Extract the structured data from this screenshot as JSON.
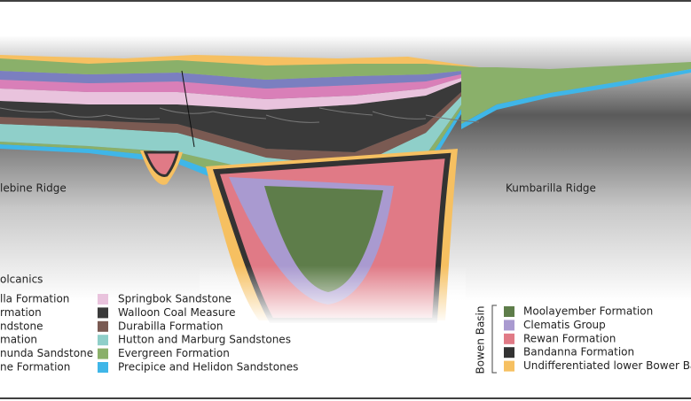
{
  "labels": {
    "left_ridge": "lebine Ridge",
    "right_ridge": "Kumbarilla Ridge",
    "bowen_group": "Bowen Basin"
  },
  "legend_left": [
    "olcanics",
    "lla Formation",
    "rmation",
    "ndstone",
    "mation",
    "nunda Sandstone",
    "ne Formation"
  ],
  "legend_middle": [
    {
      "text": "Springbok Sandstone",
      "color": "#e9c3dd"
    },
    {
      "text": "Walloon Coal Measure",
      "color": "#3a3a3a"
    },
    {
      "text": "Durabilla Formation",
      "color": "#7a5a52"
    },
    {
      "text": "Hutton and Marburg Sandstones",
      "color": "#8fcfc9"
    },
    {
      "text": "Evergreen Formation",
      "color": "#8ab06a"
    },
    {
      "text": "Precipice and Helidon Sandstones",
      "color": "#3fb6e8"
    }
  ],
  "legend_right": [
    {
      "text": "Moolayember Formation",
      "color": "#5e7d4a"
    },
    {
      "text": "Clematis Group",
      "color": "#a99ad0"
    },
    {
      "text": "Rewan Formation",
      "color": "#e07a86"
    },
    {
      "text": "Bandanna Formation",
      "color": "#333333"
    },
    {
      "text": "Undifferentiated lower Bower Basi",
      "color": "#f6c061"
    }
  ]
}
